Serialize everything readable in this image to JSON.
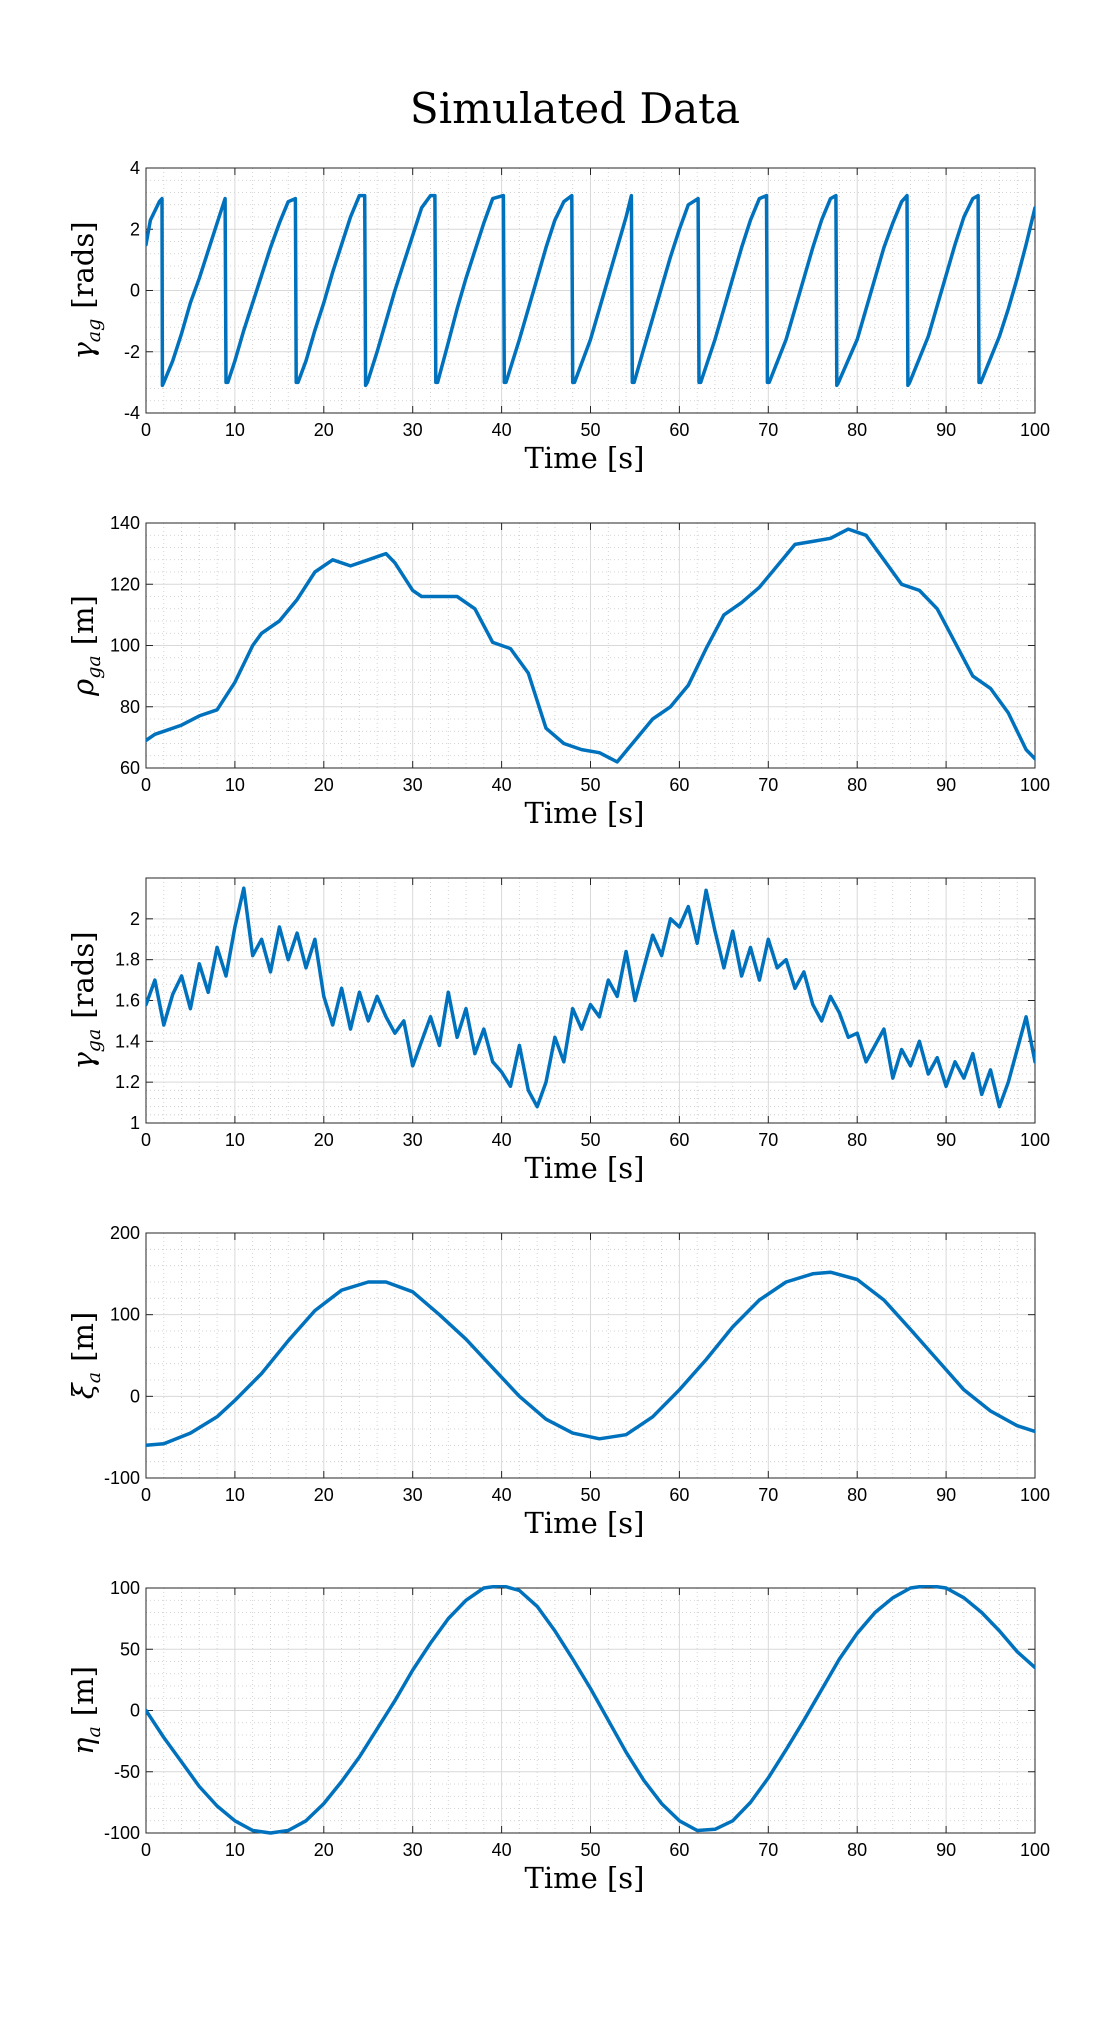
{
  "title": "Simulated Data",
  "style": {
    "line_color": "#0072BD",
    "grid_color": "#d9d9d9",
    "minor_grid_color": "#c8c8c8"
  },
  "chart_data": [
    {
      "type": "line",
      "xlabel": "Time [s]",
      "ylabel": {
        "symbol": "γ",
        "sub": "ag",
        "unit": "[rads]"
      },
      "xlim": [
        0,
        100
      ],
      "ylim": [
        -4,
        4
      ],
      "xticks": [
        0,
        10,
        20,
        30,
        40,
        50,
        60,
        70,
        80,
        90,
        100
      ],
      "xtick_labels": [
        "0",
        "10",
        "20",
        "30",
        "40",
        "50",
        "60",
        "70",
        "80",
        "90",
        "100"
      ],
      "yticks": [
        -4,
        -2,
        0,
        2,
        4
      ],
      "ytick_labels": [
        "-4",
        "-2",
        "0",
        "2",
        "4"
      ],
      "grid": "on",
      "minor_grid": "on",
      "series": [
        {
          "x": [
            0,
            0.5,
            1,
            1.5,
            1.8,
            1.85,
            2,
            3,
            4,
            5,
            6,
            7,
            8,
            8.9,
            9,
            9.2,
            10,
            11,
            12,
            13,
            14,
            15,
            16,
            16.8,
            16.9,
            17.1,
            18,
            19,
            20,
            21,
            22,
            23,
            24,
            24.6,
            24.7,
            24.9,
            26,
            27,
            28,
            29,
            30,
            31,
            32,
            32.5,
            32.6,
            32.8,
            34,
            35,
            36,
            37,
            38,
            39,
            40.2,
            40.3,
            40.5,
            42,
            43,
            44,
            45,
            46,
            47,
            47.9,
            48,
            48.2,
            50,
            51,
            52,
            53,
            54,
            54.6,
            54.7,
            54.9,
            56,
            57,
            58,
            59,
            60,
            61,
            62.1,
            62.2,
            62.4,
            64,
            65,
            66,
            67,
            68,
            69,
            69.8,
            69.9,
            70.1,
            72,
            73,
            74,
            75,
            76,
            77,
            77.6,
            77.7,
            77.9,
            80,
            81,
            82,
            83,
            84,
            85,
            85.6,
            85.7,
            85.9,
            88,
            89,
            90,
            91,
            92,
            93,
            93.6,
            93.7,
            93.9,
            96,
            97,
            98,
            99,
            100
          ],
          "y": [
            1.5,
            2.3,
            2.6,
            2.9,
            3.0,
            -3.1,
            -3.0,
            -2.3,
            -1.4,
            -0.4,
            0.4,
            1.3,
            2.2,
            3.0,
            -3.0,
            -3.0,
            -2.3,
            -1.3,
            -0.4,
            0.5,
            1.4,
            2.2,
            2.9,
            3.0,
            -3.0,
            -3.0,
            -2.3,
            -1.3,
            -0.4,
            0.6,
            1.5,
            2.4,
            3.1,
            3.1,
            -3.1,
            -3.0,
            -2.0,
            -1.0,
            0.0,
            0.9,
            1.8,
            2.7,
            3.1,
            3.1,
            -3.0,
            -3.0,
            -1.7,
            -0.6,
            0.4,
            1.3,
            2.2,
            3.0,
            3.1,
            -3.0,
            -3.0,
            -1.6,
            -0.6,
            0.4,
            1.4,
            2.3,
            2.9,
            3.1,
            -3.0,
            -3.0,
            -1.6,
            -0.6,
            0.4,
            1.4,
            2.4,
            3.1,
            -3.0,
            -3.0,
            -1.9,
            -0.9,
            0.1,
            1.1,
            2.0,
            2.8,
            3.0,
            -3.0,
            -3.0,
            -1.6,
            -0.6,
            0.4,
            1.4,
            2.3,
            3.0,
            3.1,
            -3.0,
            -3.0,
            -1.6,
            -0.6,
            0.4,
            1.4,
            2.3,
            3.0,
            3.1,
            -3.1,
            -3.0,
            -1.6,
            -0.6,
            0.4,
            1.4,
            2.2,
            2.9,
            3.1,
            -3.1,
            -3.0,
            -1.5,
            -0.5,
            0.5,
            1.5,
            2.4,
            3.0,
            3.1,
            -3.0,
            -3.0,
            -1.5,
            -0.6,
            0.4,
            1.5,
            2.7
          ]
        }
      ]
    },
    {
      "type": "line",
      "xlabel": "Time [s]",
      "ylabel": {
        "symbol": "ρ",
        "sub": "ga",
        "unit": "[m]"
      },
      "xlim": [
        0,
        100
      ],
      "ylim": [
        60,
        140
      ],
      "xticks": [
        0,
        10,
        20,
        30,
        40,
        50,
        60,
        70,
        80,
        90,
        100
      ],
      "xtick_labels": [
        "0",
        "10",
        "20",
        "30",
        "40",
        "50",
        "60",
        "70",
        "80",
        "90",
        "100"
      ],
      "yticks": [
        60,
        80,
        100,
        120,
        140
      ],
      "ytick_labels": [
        "60",
        "80",
        "100",
        "120",
        "140"
      ],
      "grid": "on",
      "minor_grid": "on",
      "series": [
        {
          "x": [
            0,
            1,
            2,
            4,
            6,
            8,
            10,
            12,
            13,
            15,
            17,
            19,
            21,
            23,
            25,
            27,
            28,
            30,
            31,
            33,
            35,
            37,
            39,
            41,
            43,
            45,
            47,
            49,
            51,
            53,
            55,
            57,
            59,
            61,
            63,
            65,
            67,
            69,
            71,
            73,
            75,
            77,
            79,
            81,
            83,
            85,
            87,
            89,
            91,
            93,
            95,
            97,
            99,
            100
          ],
          "y": [
            69,
            71,
            72,
            74,
            77,
            79,
            88,
            100,
            104,
            108,
            115,
            124,
            128,
            126,
            128,
            130,
            127,
            118,
            116,
            116,
            116,
            112,
            101,
            99,
            91,
            73,
            68,
            66,
            65,
            62,
            69,
            76,
            80,
            87,
            99,
            110,
            114,
            119,
            126,
            133,
            134,
            135,
            138,
            136,
            128,
            120,
            118,
            112,
            101,
            90,
            86,
            78,
            66,
            63
          ]
        }
      ]
    },
    {
      "type": "line",
      "xlabel": "Time [s]",
      "ylabel": {
        "symbol": "γ",
        "sub": "ga",
        "unit": "[rads]"
      },
      "xlim": [
        0,
        100
      ],
      "ylim": [
        1,
        2.2
      ],
      "xticks": [
        0,
        10,
        20,
        30,
        40,
        50,
        60,
        70,
        80,
        90,
        100
      ],
      "xtick_labels": [
        "0",
        "10",
        "20",
        "30",
        "40",
        "50",
        "60",
        "70",
        "80",
        "90",
        "100"
      ],
      "yticks": [
        1,
        1.2,
        1.4,
        1.6,
        1.8,
        2
      ],
      "ytick_labels": [
        "1",
        "1.2",
        "1.4",
        "1.6",
        "1.8",
        "2"
      ],
      "grid": "on",
      "minor_grid": "on",
      "series": [
        {
          "x": [
            0,
            1,
            2,
            3,
            4,
            5,
            6,
            7,
            8,
            9,
            10,
            11,
            12,
            13,
            14,
            15,
            16,
            17,
            18,
            19,
            20,
            21,
            22,
            23,
            24,
            25,
            26,
            27,
            28,
            29,
            30,
            31,
            32,
            33,
            34,
            35,
            36,
            37,
            38,
            39,
            40,
            41,
            42,
            43,
            44,
            45,
            46,
            47,
            48,
            49,
            50,
            51,
            52,
            53,
            54,
            55,
            56,
            57,
            58,
            59,
            60,
            61,
            62,
            63,
            64,
            65,
            66,
            67,
            68,
            69,
            70,
            71,
            72,
            73,
            74,
            75,
            76,
            77,
            78,
            79,
            80,
            81,
            82,
            83,
            84,
            85,
            86,
            87,
            88,
            89,
            90,
            91,
            92,
            93,
            94,
            95,
            96,
            97,
            98,
            99,
            100
          ],
          "y": [
            1.58,
            1.7,
            1.48,
            1.63,
            1.72,
            1.56,
            1.78,
            1.64,
            1.86,
            1.72,
            1.96,
            2.15,
            1.82,
            1.9,
            1.74,
            1.96,
            1.8,
            1.93,
            1.76,
            1.9,
            1.62,
            1.48,
            1.66,
            1.46,
            1.64,
            1.5,
            1.62,
            1.52,
            1.44,
            1.5,
            1.28,
            1.4,
            1.52,
            1.38,
            1.64,
            1.42,
            1.56,
            1.34,
            1.46,
            1.3,
            1.25,
            1.18,
            1.38,
            1.16,
            1.08,
            1.2,
            1.42,
            1.3,
            1.56,
            1.46,
            1.58,
            1.52,
            1.7,
            1.62,
            1.84,
            1.6,
            1.76,
            1.92,
            1.82,
            2.0,
            1.96,
            2.06,
            1.88,
            2.14,
            1.94,
            1.76,
            1.94,
            1.72,
            1.86,
            1.7,
            1.9,
            1.76,
            1.8,
            1.66,
            1.74,
            1.58,
            1.5,
            1.62,
            1.54,
            1.42,
            1.44,
            1.3,
            1.38,
            1.46,
            1.22,
            1.36,
            1.28,
            1.4,
            1.24,
            1.32,
            1.18,
            1.3,
            1.22,
            1.34,
            1.14,
            1.26,
            1.08,
            1.2,
            1.36,
            1.52,
            1.3
          ]
        }
      ]
    },
    {
      "type": "line",
      "xlabel": "Time [s]",
      "ylabel": {
        "symbol": "ξ",
        "sub": "a",
        "unit": "[m]"
      },
      "xlim": [
        0,
        100
      ],
      "ylim": [
        -100,
        200
      ],
      "xticks": [
        0,
        10,
        20,
        30,
        40,
        50,
        60,
        70,
        80,
        90,
        100
      ],
      "xtick_labels": [
        "0",
        "10",
        "20",
        "30",
        "40",
        "50",
        "60",
        "70",
        "80",
        "90",
        "100"
      ],
      "yticks": [
        -100,
        0,
        100,
        200
      ],
      "ytick_labels": [
        "-100",
        "0",
        "100",
        "200"
      ],
      "grid": "on",
      "minor_grid": "on",
      "series": [
        {
          "x": [
            0,
            2,
            5,
            8,
            10,
            13,
            16,
            19,
            22,
            25,
            27,
            30,
            33,
            36,
            39,
            42,
            45,
            48,
            51,
            54,
            57,
            60,
            63,
            66,
            69,
            72,
            75,
            77,
            80,
            83,
            86,
            89,
            92,
            95,
            98,
            100
          ],
          "y": [
            -60,
            -58,
            -45,
            -25,
            -5,
            28,
            68,
            105,
            130,
            140,
            140,
            128,
            100,
            70,
            35,
            0,
            -28,
            -45,
            -52,
            -47,
            -25,
            8,
            45,
            85,
            118,
            140,
            150,
            152,
            143,
            118,
            82,
            45,
            8,
            -18,
            -36,
            -43
          ]
        }
      ]
    },
    {
      "type": "line",
      "xlabel": "Time [s]",
      "ylabel": {
        "symbol": "η",
        "sub": "a",
        "unit": "[m]"
      },
      "xlim": [
        0,
        100
      ],
      "ylim": [
        -100,
        100
      ],
      "xticks": [
        0,
        10,
        20,
        30,
        40,
        50,
        60,
        70,
        80,
        90,
        100
      ],
      "xtick_labels": [
        "0",
        "10",
        "20",
        "30",
        "40",
        "50",
        "60",
        "70",
        "80",
        "90",
        "100"
      ],
      "yticks": [
        -100,
        -50,
        0,
        50,
        100
      ],
      "ytick_labels": [
        "-100",
        "-50",
        "0",
        "50",
        "100"
      ],
      "grid": "on",
      "minor_grid": "on",
      "series": [
        {
          "x": [
            0,
            2,
            4,
            6,
            8,
            10,
            12,
            14,
            16,
            18,
            20,
            22,
            24,
            26,
            28,
            30,
            32,
            34,
            36,
            38,
            40,
            42,
            44,
            46,
            48,
            50,
            52,
            54,
            56,
            58,
            60,
            62,
            64,
            66,
            68,
            70,
            72,
            74,
            76,
            78,
            80,
            82,
            84,
            86,
            88,
            90,
            92,
            94,
            96,
            98,
            100
          ],
          "y": [
            0,
            -22,
            -42,
            -62,
            -78,
            -90,
            -98,
            -100,
            -98,
            -90,
            -76,
            -58,
            -38,
            -15,
            8,
            33,
            55,
            75,
            90,
            100,
            102,
            98,
            85,
            65,
            42,
            18,
            -8,
            -34,
            -57,
            -76,
            -90,
            -98,
            -97,
            -90,
            -75,
            -55,
            -32,
            -8,
            17,
            42,
            63,
            80,
            92,
            100,
            102,
            100,
            92,
            80,
            65,
            48,
            35
          ]
        }
      ]
    }
  ]
}
